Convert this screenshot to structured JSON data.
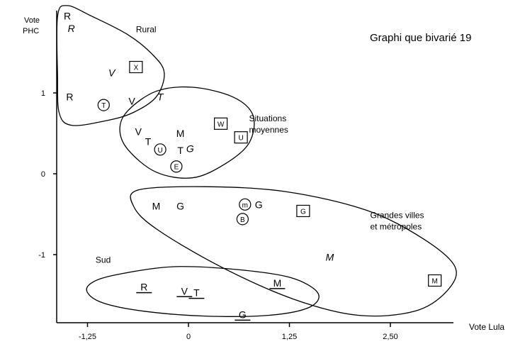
{
  "chart_data": {
    "type": "scatter",
    "title": "Graphi que bivarié 19",
    "xlabel": "Vote Lula",
    "ylabel": [
      "Vote",
      "PHC"
    ],
    "xlim": [
      -1.6,
      3.2
    ],
    "ylim": [
      -1.75,
      2.05
    ],
    "xticks": [
      {
        "v": -1.25,
        "label": "-1,25"
      },
      {
        "v": 0,
        "label": "0"
      },
      {
        "v": 1.25,
        "label": "1,25"
      },
      {
        "v": 2.5,
        "label": "2,50"
      }
    ],
    "yticks": [
      {
        "v": 1,
        "label": "1"
      },
      {
        "v": 0,
        "label": "0"
      },
      {
        "v": -1,
        "label": "-1"
      }
    ],
    "grid": false,
    "legend": "none",
    "groups": [
      {
        "name": "Rural",
        "label_xy": [
          -0.65,
          1.75
        ],
        "outline": [
          [
            -1.62,
            1.95
          ],
          [
            -1.5,
            2.08
          ],
          [
            -1.2,
            1.95
          ],
          [
            -0.75,
            1.72
          ],
          [
            -0.45,
            1.48
          ],
          [
            -0.3,
            1.25
          ],
          [
            -0.4,
            0.95
          ],
          [
            -0.7,
            0.75
          ],
          [
            -1.05,
            0.65
          ],
          [
            -1.45,
            0.6
          ],
          [
            -1.6,
            0.75
          ],
          [
            -1.62,
            1.2
          ]
        ]
      },
      {
        "name": "Situations moyennes",
        "label_xy": [
          0.75,
          0.65
        ],
        "outline": [
          [
            -0.75,
            0.78
          ],
          [
            -0.4,
            1.02
          ],
          [
            0.05,
            1.07
          ],
          [
            0.55,
            0.95
          ],
          [
            0.8,
            0.72
          ],
          [
            0.75,
            0.38
          ],
          [
            0.45,
            0.12
          ],
          [
            0.05,
            -0.05
          ],
          [
            -0.4,
            0.02
          ],
          [
            -0.75,
            0.3
          ],
          [
            -0.85,
            0.55
          ]
        ]
      },
      {
        "name": "Grandes villes et métropoles",
        "label_xy": [
          2.25,
          -0.55
        ],
        "outline": [
          [
            -0.62,
            -0.2
          ],
          [
            0.2,
            -0.16
          ],
          [
            1.2,
            -0.22
          ],
          [
            2.2,
            -0.45
          ],
          [
            2.9,
            -0.8
          ],
          [
            3.3,
            -1.15
          ],
          [
            3.2,
            -1.45
          ],
          [
            2.8,
            -1.7
          ],
          [
            2.1,
            -1.75
          ],
          [
            1.3,
            -1.55
          ],
          [
            0.4,
            -1.15
          ],
          [
            -0.4,
            -0.68
          ],
          [
            -0.68,
            -0.4
          ]
        ]
      },
      {
        "name": "Sud",
        "label_xy": [
          -1.15,
          -1.1
        ],
        "outline": [
          [
            -1.2,
            -1.35
          ],
          [
            -0.9,
            -1.25
          ],
          [
            -0.2,
            -1.15
          ],
          [
            0.55,
            -1.18
          ],
          [
            1.25,
            -1.28
          ],
          [
            1.6,
            -1.47
          ],
          [
            1.5,
            -1.65
          ],
          [
            1.0,
            -1.75
          ],
          [
            0.2,
            -1.76
          ],
          [
            -0.55,
            -1.7
          ],
          [
            -1.05,
            -1.6
          ],
          [
            -1.25,
            -1.47
          ]
        ]
      }
    ],
    "points": [
      {
        "x": -1.5,
        "y": 1.95,
        "label": "R",
        "style": "plain"
      },
      {
        "x": -1.45,
        "y": 1.8,
        "label": "R",
        "style": "italic"
      },
      {
        "x": -0.95,
        "y": 1.25,
        "label": "V",
        "style": "italic"
      },
      {
        "x": -0.65,
        "y": 1.32,
        "label": "X",
        "style": "boxed"
      },
      {
        "x": -1.47,
        "y": 0.95,
        "label": "R",
        "style": "plain"
      },
      {
        "x": -1.05,
        "y": 0.85,
        "label": "T",
        "style": "circled"
      },
      {
        "x": -0.7,
        "y": 0.9,
        "label": "V",
        "style": "plain"
      },
      {
        "x": -0.35,
        "y": 0.95,
        "label": "T",
        "style": "italic"
      },
      {
        "x": -0.62,
        "y": 0.52,
        "label": "V",
        "style": "plain"
      },
      {
        "x": -0.5,
        "y": 0.4,
        "label": "T",
        "style": "plain"
      },
      {
        "x": -0.35,
        "y": 0.3,
        "label": "U",
        "style": "circled"
      },
      {
        "x": -0.1,
        "y": 0.5,
        "label": "M",
        "style": "plain"
      },
      {
        "x": -0.1,
        "y": 0.29,
        "label": "T",
        "style": "plain"
      },
      {
        "x": 0.02,
        "y": 0.31,
        "label": "G",
        "style": "italic"
      },
      {
        "x": -0.15,
        "y": 0.09,
        "label": "E",
        "style": "circled"
      },
      {
        "x": 0.4,
        "y": 0.62,
        "label": "W",
        "style": "boxed"
      },
      {
        "x": 0.65,
        "y": 0.45,
        "label": "U",
        "style": "boxed"
      },
      {
        "x": -0.4,
        "y": -0.4,
        "label": "M",
        "style": "plain"
      },
      {
        "x": -0.1,
        "y": -0.4,
        "label": "G",
        "style": "plain"
      },
      {
        "x": 0.7,
        "y": -0.38,
        "label": "m",
        "style": "circled"
      },
      {
        "x": 0.87,
        "y": -0.38,
        "label": "G",
        "style": "plain"
      },
      {
        "x": 0.67,
        "y": -0.56,
        "label": "B",
        "style": "circled"
      },
      {
        "x": 1.42,
        "y": -0.46,
        "label": "G",
        "style": "boxed"
      },
      {
        "x": 1.75,
        "y": -1.03,
        "label": "M",
        "style": "italic"
      },
      {
        "x": 3.05,
        "y": -1.32,
        "label": "M",
        "style": "boxed"
      },
      {
        "x": -0.55,
        "y": -1.4,
        "label": "R",
        "style": "underline"
      },
      {
        "x": -0.05,
        "y": -1.45,
        "label": "V",
        "style": "underline"
      },
      {
        "x": 0.1,
        "y": -1.47,
        "label": "T",
        "style": "underline"
      },
      {
        "x": 1.1,
        "y": -1.35,
        "label": "M",
        "style": "underline"
      },
      {
        "x": 0.67,
        "y": -1.74,
        "label": "G",
        "style": "underline"
      }
    ]
  }
}
